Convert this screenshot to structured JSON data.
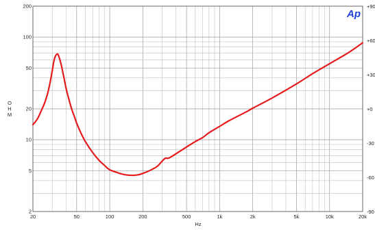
{
  "logo_text": "Ap",
  "chart_data": {
    "type": "line",
    "title": "",
    "xlabel": "Hz",
    "ylabel": "O H M",
    "x_scale": "log",
    "y_scale": "log",
    "xlim": [
      20,
      20000
    ],
    "ylim": [
      2,
      200
    ],
    "y2lim": [
      -90,
      90
    ],
    "grid": true,
    "legend": "none",
    "x_tick_labels": [
      {
        "value": 20,
        "label": "20"
      },
      {
        "value": 50,
        "label": "50"
      },
      {
        "value": 100,
        "label": "100"
      },
      {
        "value": 200,
        "label": "200"
      },
      {
        "value": 500,
        "label": "500"
      },
      {
        "value": 1000,
        "label": "1k"
      },
      {
        "value": 2000,
        "label": "2k"
      },
      {
        "value": 5000,
        "label": "5k"
      },
      {
        "value": 10000,
        "label": "10k"
      },
      {
        "value": 20000,
        "label": "20k"
      }
    ],
    "y_tick_labels": [
      {
        "value": 200,
        "label": "200"
      },
      {
        "value": 100,
        "label": "100"
      },
      {
        "value": 50,
        "label": "50"
      },
      {
        "value": 20,
        "label": "20"
      },
      {
        "value": 10,
        "label": "10"
      },
      {
        "value": 5,
        "label": "5"
      },
      {
        "value": 2,
        "label": "2"
      }
    ],
    "y2_tick_labels": [
      {
        "value": 90,
        "label": "+90"
      },
      {
        "value": 60,
        "label": "+60"
      },
      {
        "value": 30,
        "label": "+30"
      },
      {
        "value": 0,
        "label": "+0"
      },
      {
        "value": -30,
        "label": "-30"
      },
      {
        "value": -60,
        "label": "-60"
      },
      {
        "value": -90,
        "label": "-90"
      }
    ],
    "series": [
      {
        "color": "#e41a1c",
        "x": [
          20,
          22,
          24,
          26,
          28,
          30,
          31,
          32,
          33,
          34,
          36,
          38,
          40,
          42,
          45,
          48,
          50,
          55,
          60,
          70,
          80,
          90,
          100,
          120,
          140,
          160,
          180,
          200,
          230,
          270,
          300,
          320,
          340,
          360,
          400,
          500,
          600,
          700,
          800,
          1000,
          1200,
          1500,
          1800,
          2000,
          3000,
          5000,
          7000,
          10000,
          15000,
          20000
        ],
        "y": [
          14,
          16,
          19.5,
          24,
          32,
          47,
          58,
          65,
          68,
          67,
          55,
          42,
          32,
          26,
          20,
          16.5,
          14.5,
          11.5,
          9.6,
          7.5,
          6.3,
          5.6,
          5.1,
          4.75,
          4.55,
          4.5,
          4.55,
          4.7,
          5.0,
          5.5,
          6.2,
          6.6,
          6.6,
          6.8,
          7.3,
          8.5,
          9.6,
          10.5,
          11.7,
          13.5,
          15.2,
          17.2,
          19.0,
          20.3,
          25.5,
          35,
          44,
          55,
          71,
          88
        ]
      }
    ]
  }
}
